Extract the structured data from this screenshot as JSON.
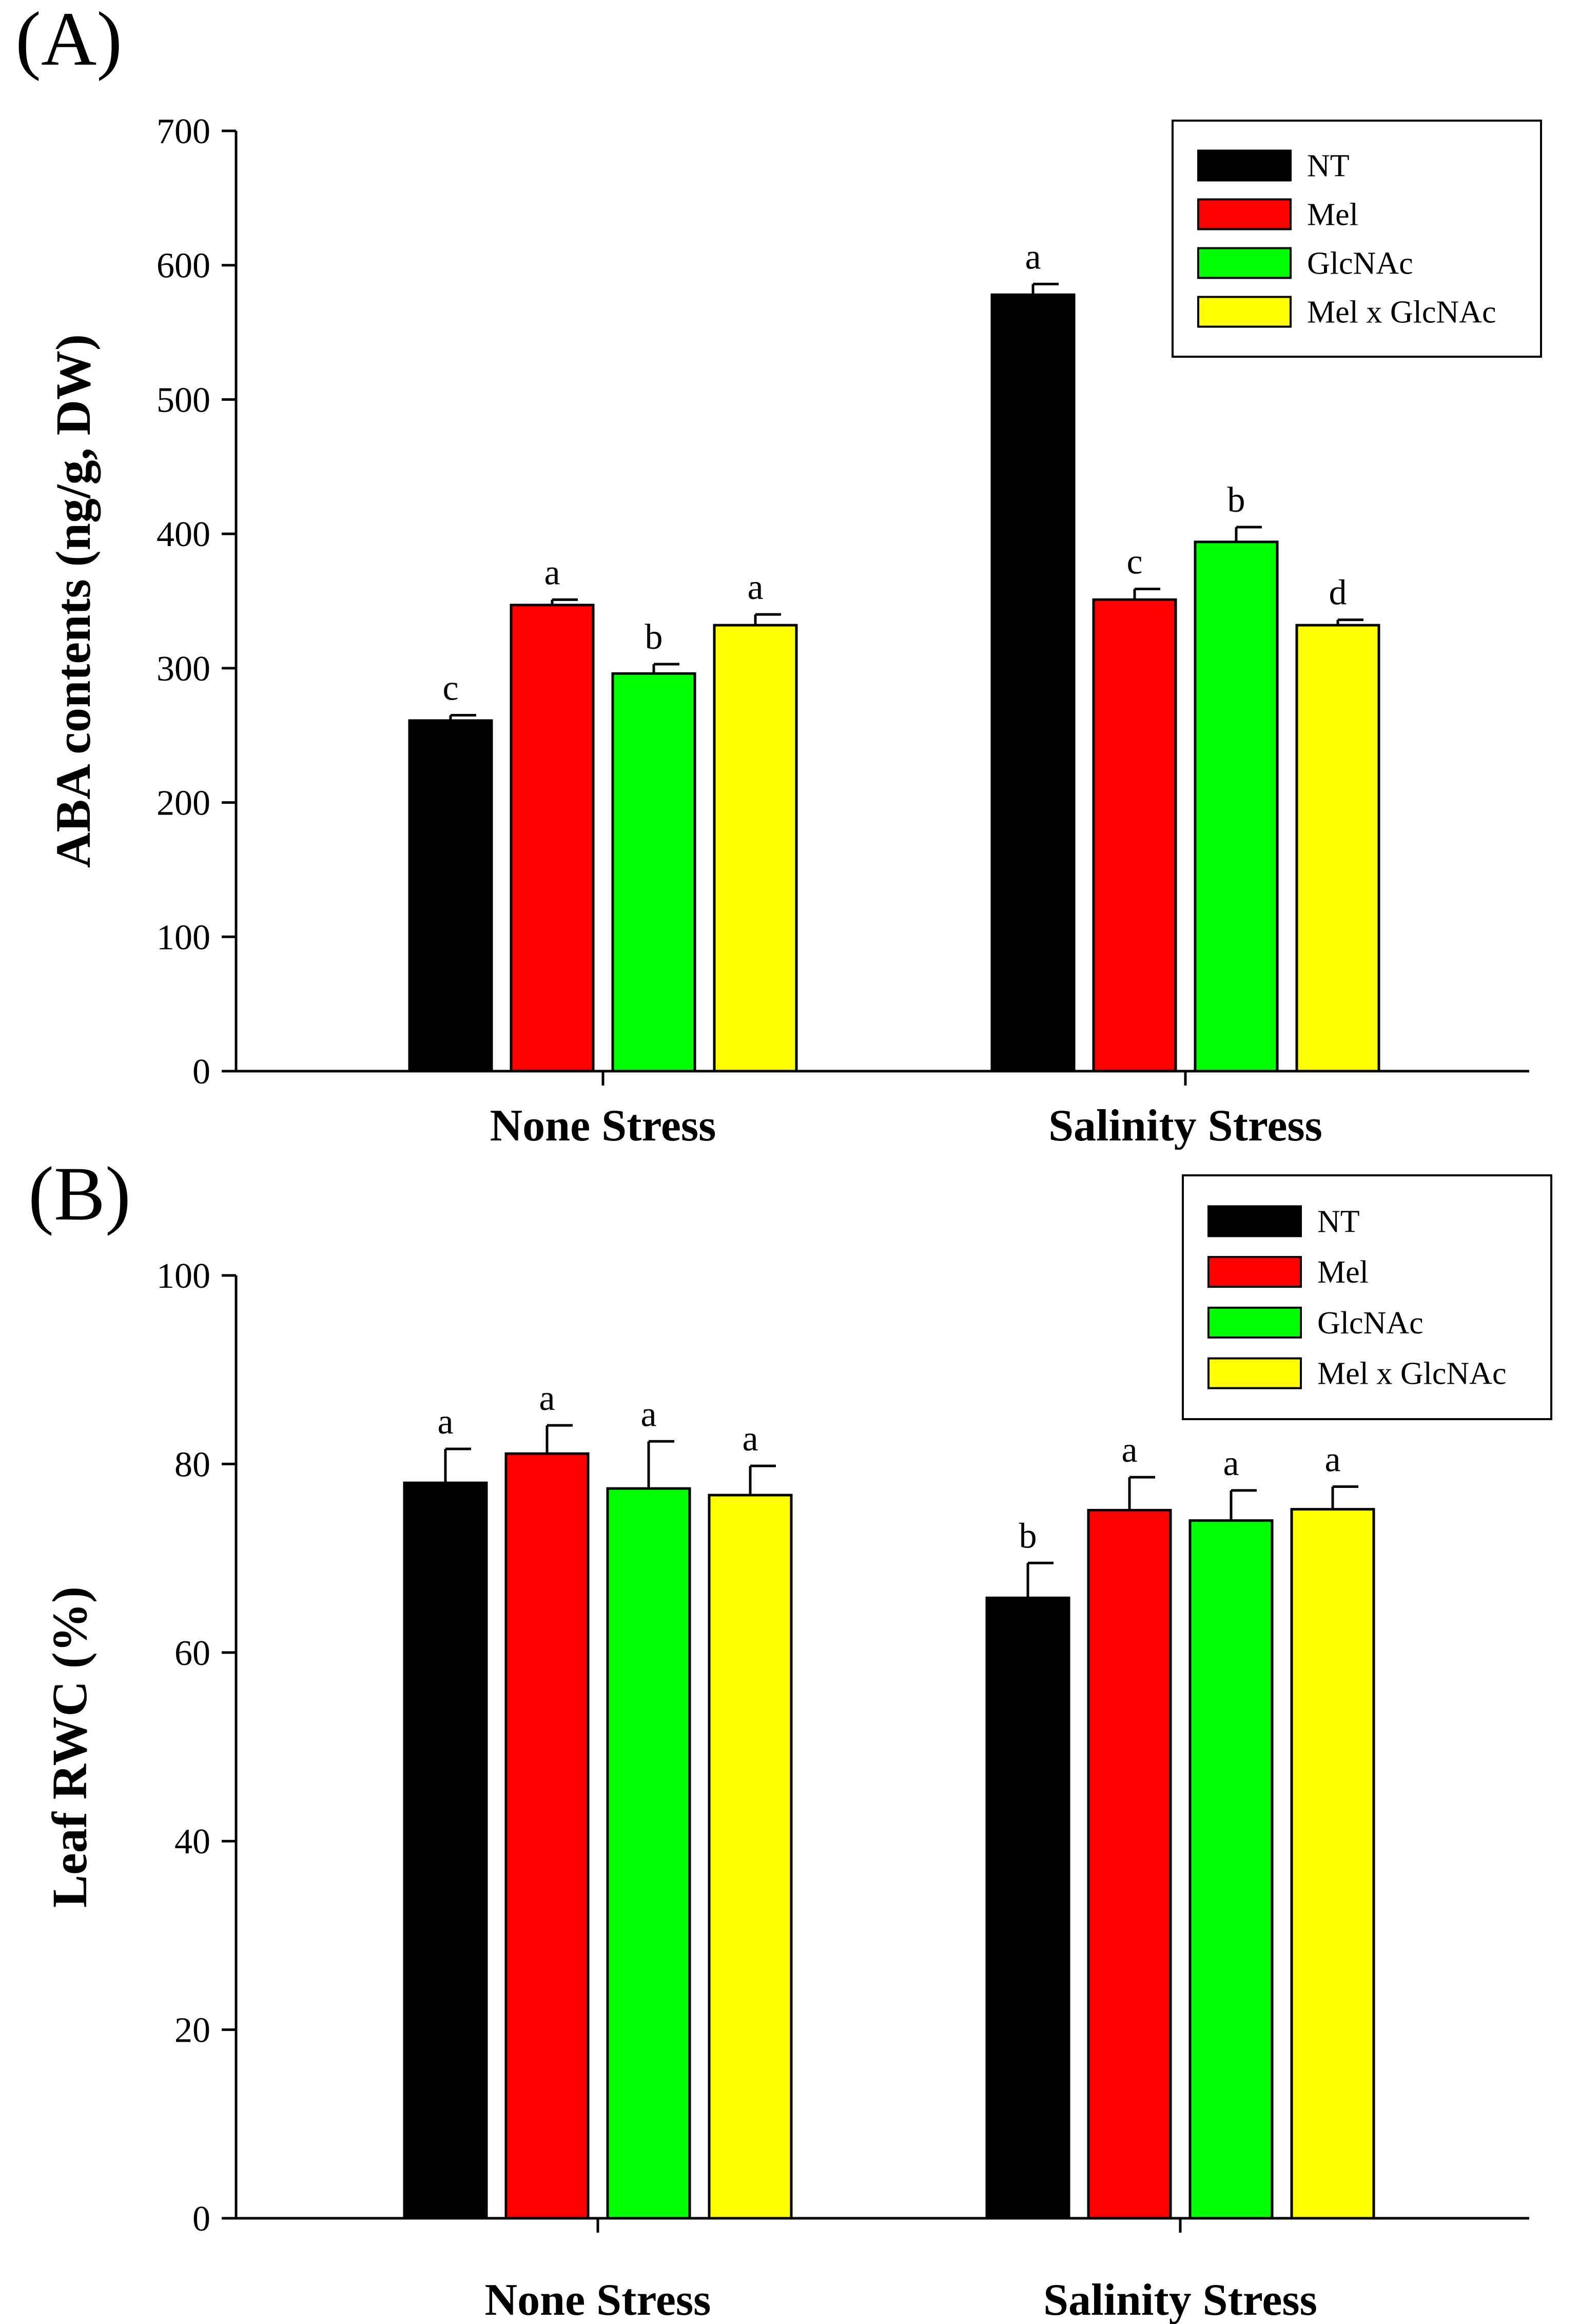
{
  "chart_data": [
    {
      "panel_label": "(A)",
      "type": "bar",
      "title": "",
      "xlabel": "",
      "ylabel": "ABA contents (ng/g, DW)",
      "ylim": [
        0,
        700
      ],
      "yticks": [
        0,
        100,
        200,
        300,
        400,
        500,
        600,
        700
      ],
      "categories": [
        "None Stress",
        "Salinity Stress"
      ],
      "legend_position": "top-right",
      "series": [
        {
          "name": "NT",
          "color": "#000000",
          "values": [
            261,
            578
          ],
          "errors": [
            4,
            8
          ],
          "letters": [
            "c",
            "a"
          ]
        },
        {
          "name": "Mel",
          "color": "#ff0000",
          "values": [
            347,
            351
          ],
          "errors": [
            4,
            8
          ],
          "letters": [
            "a",
            "c"
          ]
        },
        {
          "name": "GlcNAc",
          "color": "#00ff00",
          "values": [
            296,
            394
          ],
          "errors": [
            7,
            11
          ],
          "letters": [
            "b",
            "b"
          ]
        },
        {
          "name": "Mel x GlcNAc",
          "color": "#ffff00",
          "values": [
            332,
            332
          ],
          "errors": [
            8,
            4
          ],
          "letters": [
            "a",
            "d"
          ]
        }
      ]
    },
    {
      "panel_label": "(B)",
      "type": "bar",
      "title": "",
      "xlabel": "",
      "ylabel": "Leaf RWC (%)",
      "ylim": [
        0,
        100
      ],
      "yticks": [
        0,
        20,
        40,
        60,
        80,
        100
      ],
      "categories": [
        "None Stress",
        "Salinity Stress"
      ],
      "legend_position": "top-right",
      "series": [
        {
          "name": "NT",
          "color": "#000000",
          "values": [
            78,
            65.8
          ],
          "errors": [
            3.6,
            3.7
          ],
          "letters": [
            "a",
            "b"
          ]
        },
        {
          "name": "Mel",
          "color": "#ff0000",
          "values": [
            81.1,
            75.1
          ],
          "errors": [
            3,
            3.5
          ],
          "letters": [
            "a",
            "a"
          ]
        },
        {
          "name": "GlcNAc",
          "color": "#00ff00",
          "values": [
            77.4,
            74
          ],
          "errors": [
            5,
            3.2
          ],
          "letters": [
            "a",
            "a"
          ]
        },
        {
          "name": "Mel x GlcNAc",
          "color": "#ffff00",
          "values": [
            76.7,
            75.2
          ],
          "errors": [
            3.1,
            2.4
          ],
          "letters": [
            "a",
            "a"
          ]
        }
      ]
    }
  ]
}
